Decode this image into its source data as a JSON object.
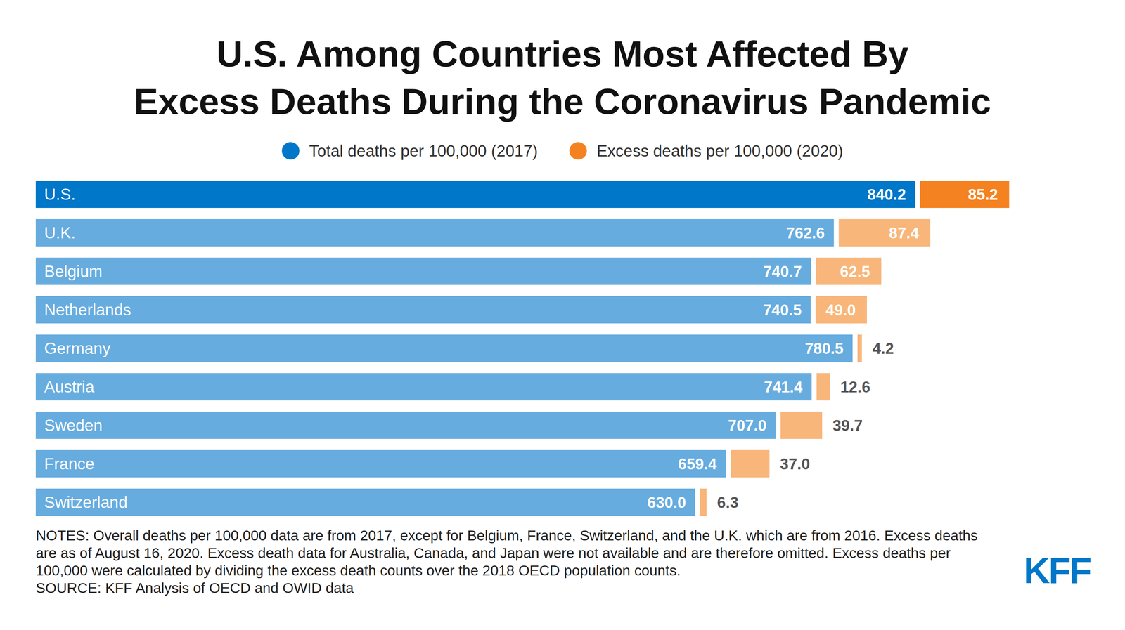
{
  "chart_data": {
    "type": "bar",
    "title": "U.S. Among Countries Most Affected By\nExcess Deaths During the Coronavirus Pandemic",
    "orientation": "horizontal",
    "stacked": true,
    "data_labels": true,
    "tick_labels": false,
    "legend": "top",
    "xlim": [
      0,
      950
    ],
    "categories": [
      "U.S.",
      "U.K.",
      "Belgium",
      "Netherlands",
      "Germany",
      "Austria",
      "Sweden",
      "France",
      "Switzerland"
    ],
    "series": [
      {
        "name": "Total deaths per 100,000 (2017)",
        "color": "#0077c8",
        "colors": [
          "#0077c8",
          "#67acdf",
          "#67acdf",
          "#67acdf",
          "#67acdf",
          "#67acdf",
          "#67acdf",
          "#67acdf",
          "#67acdf"
        ],
        "values": [
          840.2,
          762.6,
          740.7,
          740.5,
          780.5,
          741.4,
          707.0,
          659.4,
          630.0
        ],
        "value_labels": [
          "840.2",
          "762.6",
          "740.7",
          "740.5",
          "780.5",
          "741.4",
          "707.0",
          "659.4",
          "630.0"
        ]
      },
      {
        "name": "Excess deaths per 100,000 (2020)",
        "color": "#f58220",
        "colors": [
          "#f58220",
          "#f8b67a",
          "#f8b67a",
          "#f8b67a",
          "#f8b67a",
          "#f8b67a",
          "#f8b67a",
          "#f8b67a",
          "#f8b67a"
        ],
        "values": [
          85.2,
          87.4,
          62.5,
          49.0,
          4.2,
          12.6,
          39.7,
          37.0,
          6.3
        ],
        "value_labels": [
          "85.2",
          "87.4",
          "62.5",
          "49.0",
          "4.2",
          "12.6",
          "39.7",
          "37.0",
          "6.3"
        ]
      }
    ],
    "notes": "NOTES: Overall deaths per 100,000 data are from 2017, except for Belgium, France, Switzerland, and the U.K. which are from 2016.  Excess deaths are as of August 16, 2020. Excess death data for Australia, Canada, and Japan were not available and are therefore omitted. Excess deaths per 100,000  were calculated by dividing the excess death counts over the 2018 OECD population counts.",
    "source": "SOURCE: KFF Analysis of OECD and OWID data",
    "logo": "KFF"
  }
}
